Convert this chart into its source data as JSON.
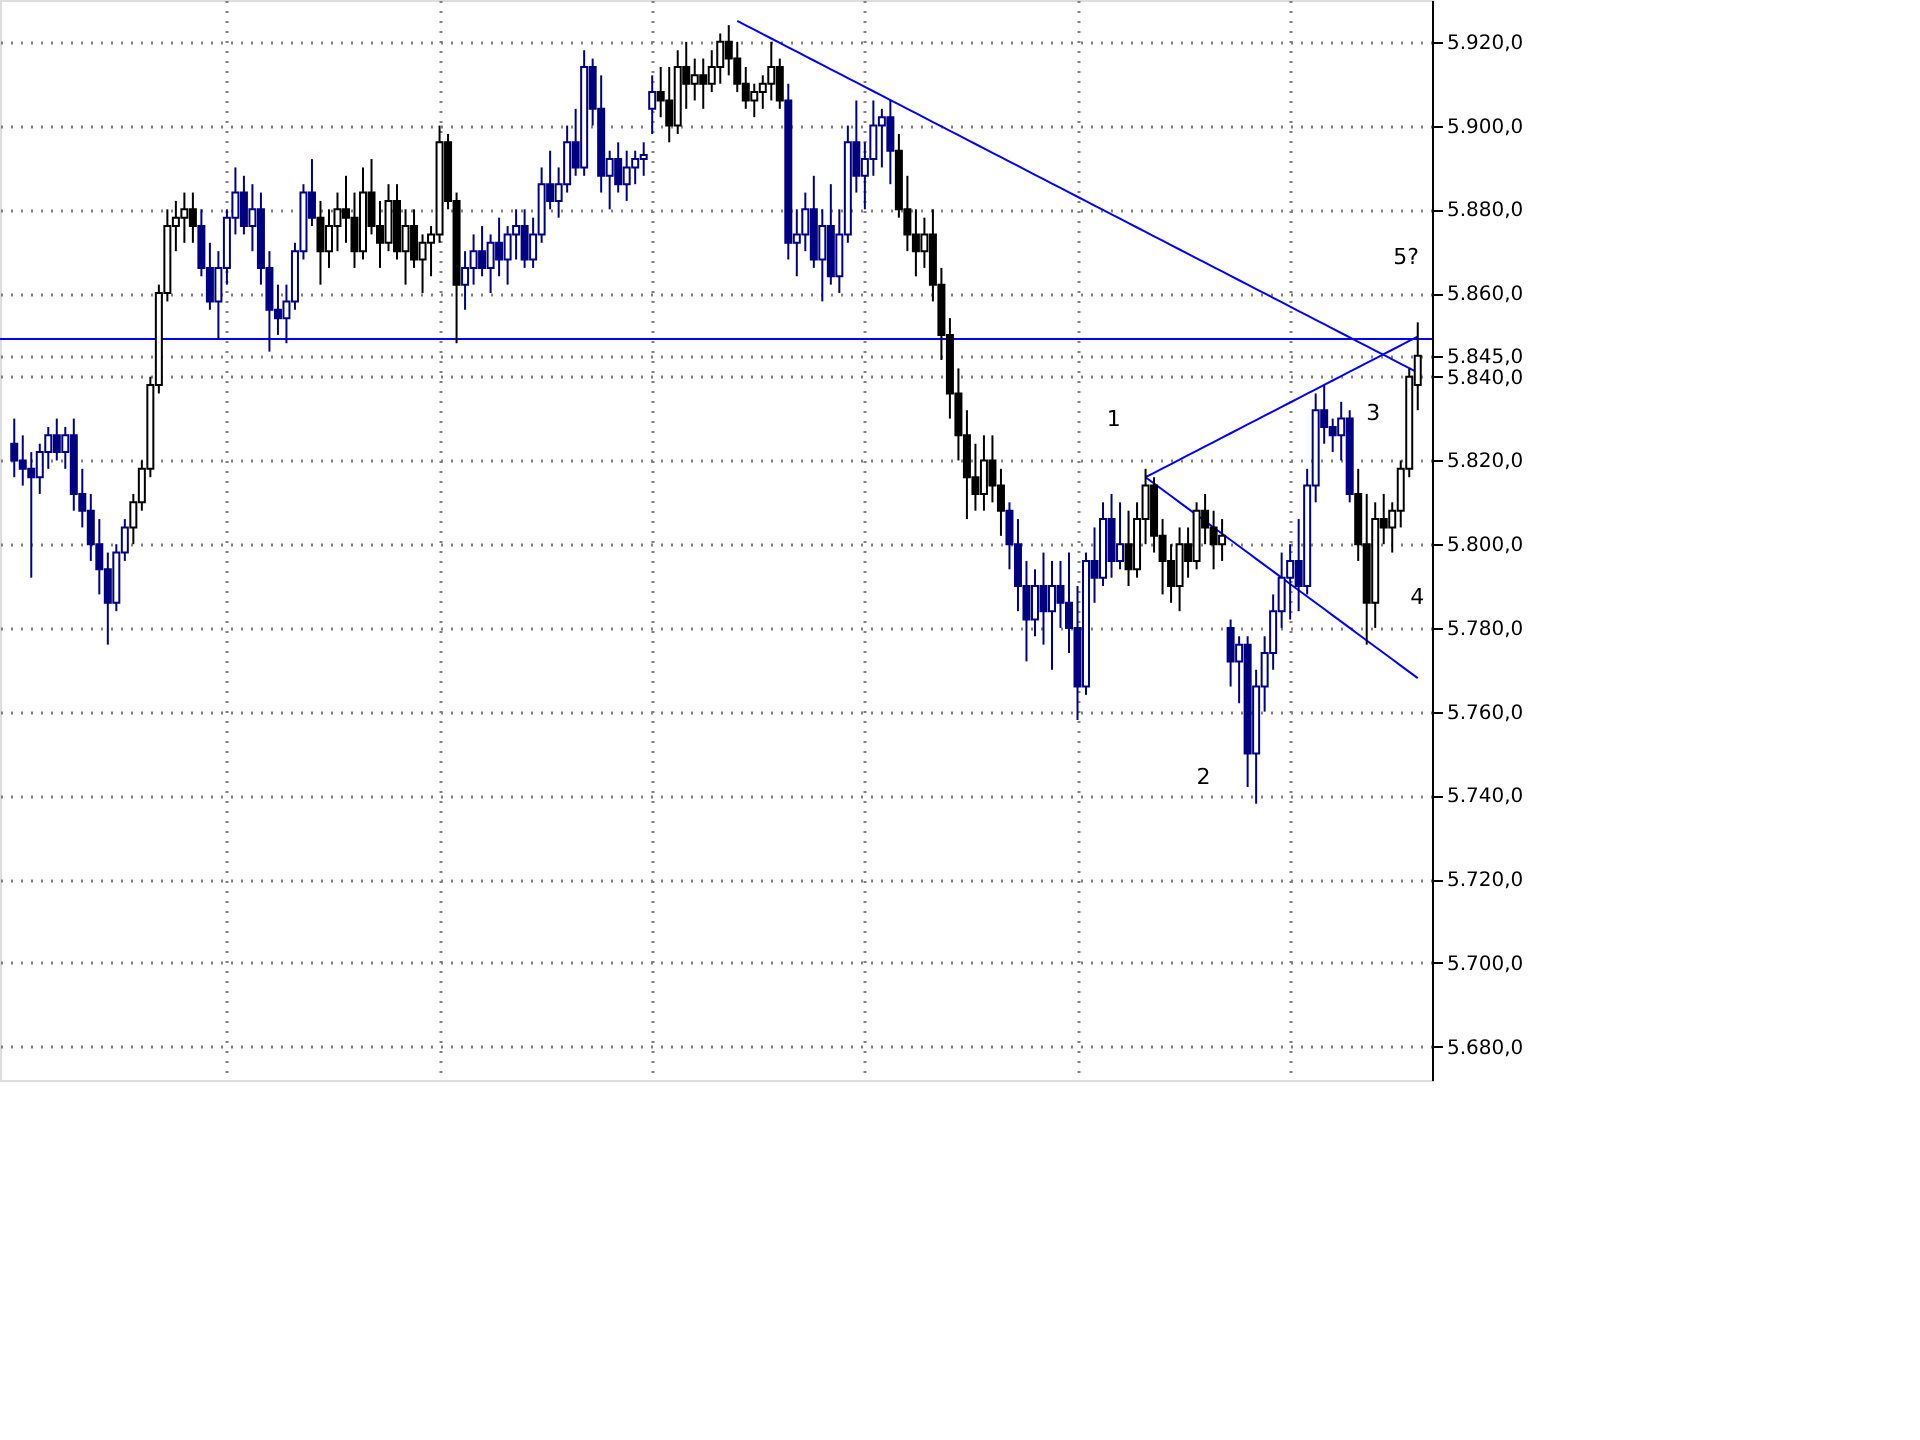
{
  "chart_data": {
    "type": "candlestick",
    "categories": [
      null,
      null,
      null,
      null,
      null,
      null,
      null,
      null,
      null,
      null,
      null,
      null,
      null,
      null,
      null,
      null,
      null,
      null,
      null,
      null,
      null,
      null,
      null,
      null,
      null,
      null,
      null,
      null,
      null,
      null,
      null,
      null,
      null,
      null,
      null,
      null,
      null,
      null,
      null,
      null,
      null,
      null,
      null,
      null,
      null,
      null,
      null,
      null,
      null,
      null,
      null,
      null,
      null,
      null,
      null,
      null,
      null,
      null,
      null,
      null,
      null,
      null,
      null,
      null,
      null,
      null,
      null,
      null,
      null,
      null,
      null,
      null,
      null,
      null,
      null,
      null,
      null,
      null,
      null,
      null,
      null,
      null,
      null,
      null,
      null,
      null,
      null,
      null,
      null,
      null,
      null,
      null,
      null,
      null,
      null,
      null,
      null,
      null,
      null,
      null,
      null,
      null,
      null,
      null,
      null,
      null,
      null,
      null,
      null,
      null,
      null,
      null,
      null,
      null,
      null,
      null,
      null,
      null,
      null,
      null,
      null,
      null,
      null,
      null,
      null,
      null,
      null,
      null,
      null,
      null,
      null,
      null,
      null,
      null,
      null,
      null,
      null,
      null,
      null,
      null,
      null,
      null,
      null,
      null,
      null,
      null,
      null,
      null,
      null,
      null,
      null,
      null,
      null,
      null,
      null,
      null,
      null,
      null,
      null,
      null,
      null,
      null,
      null,
      null,
      null,
      null
    ],
    "ohlc": [
      [
        5824,
        5830,
        5816,
        5820
      ],
      [
        5820,
        5826,
        5814,
        5818
      ],
      [
        5818,
        5822,
        5792,
        5816
      ],
      [
        5816,
        5824,
        5812,
        5822
      ],
      [
        5822,
        5828,
        5818,
        5826
      ],
      [
        5826,
        5830,
        5820,
        5822
      ],
      [
        5822,
        5828,
        5818,
        5826
      ],
      [
        5826,
        5830,
        5808,
        5812
      ],
      [
        5812,
        5818,
        5804,
        5808
      ],
      [
        5808,
        5812,
        5796,
        5800
      ],
      [
        5800,
        5806,
        5788,
        5794
      ],
      [
        5794,
        5798,
        5776,
        5786
      ],
      [
        5786,
        5800,
        5784,
        5798
      ],
      [
        5798,
        5806,
        5796,
        5804
      ],
      [
        5804,
        5812,
        5800,
        5810
      ],
      [
        5810,
        5820,
        5808,
        5818
      ],
      [
        5818,
        5840,
        5816,
        5838
      ],
      [
        5838,
        5862,
        5836,
        5860
      ],
      [
        5860,
        5880,
        5858,
        5876
      ],
      [
        5876,
        5882,
        5870,
        5878
      ],
      [
        5878,
        5884,
        5872,
        5880
      ],
      [
        5880,
        5884,
        5872,
        5876
      ],
      [
        5876,
        5880,
        5864,
        5866
      ],
      [
        5866,
        5872,
        5856,
        5858
      ],
      [
        5858,
        5870,
        5849,
        5866
      ],
      [
        5866,
        5880,
        5862,
        5878
      ],
      [
        5878,
        5890,
        5874,
        5884
      ],
      [
        5884,
        5888,
        5874,
        5876
      ],
      [
        5876,
        5886,
        5870,
        5880
      ],
      [
        5880,
        5884,
        5862,
        5866
      ],
      [
        5866,
        5870,
        5846,
        5856
      ],
      [
        5856,
        5862,
        5850,
        5854
      ],
      [
        5854,
        5862,
        5848,
        5858
      ],
      [
        5858,
        5872,
        5856,
        5870
      ],
      [
        5870,
        5886,
        5868,
        5884
      ],
      [
        5884,
        5892,
        5876,
        5878
      ],
      [
        5878,
        5882,
        5862,
        5870
      ],
      [
        5870,
        5880,
        5866,
        5876
      ],
      [
        5876,
        5884,
        5870,
        5880
      ],
      [
        5880,
        5888,
        5872,
        5878
      ],
      [
        5878,
        5884,
        5866,
        5870
      ],
      [
        5870,
        5890,
        5868,
        5884
      ],
      [
        5884,
        5892,
        5874,
        5876
      ],
      [
        5876,
        5882,
        5866,
        5872
      ],
      [
        5872,
        5886,
        5870,
        5882
      ],
      [
        5882,
        5886,
        5868,
        5870
      ],
      [
        5870,
        5880,
        5862,
        5876
      ],
      [
        5876,
        5880,
        5866,
        5868
      ],
      [
        5868,
        5874,
        5860,
        5872
      ],
      [
        5872,
        5876,
        5864,
        5874
      ],
      [
        5874,
        5900,
        5872,
        5896
      ],
      [
        5896,
        5898,
        5880,
        5882
      ],
      [
        5882,
        5884,
        5848,
        5862
      ],
      [
        5862,
        5870,
        5856,
        5866
      ],
      [
        5866,
        5874,
        5862,
        5870
      ],
      [
        5870,
        5876,
        5864,
        5866
      ],
      [
        5866,
        5874,
        5860,
        5872
      ],
      [
        5872,
        5878,
        5864,
        5868
      ],
      [
        5868,
        5876,
        5862,
        5874
      ],
      [
        5874,
        5880,
        5868,
        5876
      ],
      [
        5876,
        5880,
        5866,
        5868
      ],
      [
        5868,
        5878,
        5866,
        5874
      ],
      [
        5874,
        5890,
        5872,
        5886
      ],
      [
        5886,
        5894,
        5880,
        5882
      ],
      [
        5882,
        5890,
        5878,
        5886
      ],
      [
        5886,
        5900,
        5884,
        5896
      ],
      [
        5896,
        5904,
        5888,
        5890
      ],
      [
        5890,
        5918,
        5888,
        5914
      ],
      [
        5914,
        5916,
        5900,
        5904
      ],
      [
        5904,
        5912,
        5884,
        5888
      ],
      [
        5888,
        5894,
        5880,
        5892
      ],
      [
        5892,
        5896,
        5884,
        5886
      ],
      [
        5886,
        5894,
        5882,
        5890
      ],
      [
        5890,
        5894,
        5886,
        5892
      ],
      [
        5892,
        5896,
        5888,
        5893
      ],
      [
        5904,
        5912,
        5898,
        5908
      ],
      [
        5908,
        5914,
        5902,
        5906
      ],
      [
        5906,
        5914,
        5896,
        5900
      ],
      [
        5900,
        5918,
        5898,
        5914
      ],
      [
        5914,
        5920,
        5904,
        5910
      ],
      [
        5910,
        5916,
        5906,
        5912
      ],
      [
        5912,
        5916,
        5904,
        5910
      ],
      [
        5910,
        5918,
        5908,
        5914
      ],
      [
        5914,
        5922,
        5910,
        5920
      ],
      [
        5920,
        5924,
        5912,
        5916
      ],
      [
        5916,
        5920,
        5908,
        5910
      ],
      [
        5910,
        5914,
        5904,
        5906
      ],
      [
        5906,
        5910,
        5902,
        5908
      ],
      [
        5908,
        5912,
        5904,
        5910
      ],
      [
        5910,
        5920,
        5906,
        5914
      ],
      [
        5914,
        5916,
        5904,
        5906
      ],
      [
        5906,
        5910,
        5868,
        5872
      ],
      [
        5872,
        5880,
        5864,
        5874
      ],
      [
        5874,
        5884,
        5870,
        5880
      ],
      [
        5880,
        5888,
        5866,
        5868
      ],
      [
        5868,
        5880,
        5858,
        5876
      ],
      [
        5876,
        5886,
        5862,
        5864
      ],
      [
        5864,
        5880,
        5860,
        5874
      ],
      [
        5874,
        5900,
        5872,
        5896
      ],
      [
        5896,
        5906,
        5884,
        5888
      ],
      [
        5888,
        5896,
        5880,
        5892
      ],
      [
        5892,
        5906,
        5888,
        5900
      ],
      [
        5900,
        5904,
        5890,
        5902
      ],
      [
        5902,
        5906,
        5886,
        5894
      ],
      [
        5894,
        5898,
        5878,
        5880
      ],
      [
        5880,
        5888,
        5870,
        5874
      ],
      [
        5874,
        5880,
        5864,
        5870
      ],
      [
        5870,
        5878,
        5866,
        5874
      ],
      [
        5874,
        5880,
        5858,
        5862
      ],
      [
        5862,
        5866,
        5844,
        5850
      ],
      [
        5850,
        5854,
        5830,
        5836
      ],
      [
        5836,
        5842,
        5820,
        5826
      ],
      [
        5826,
        5832,
        5806,
        5816
      ],
      [
        5816,
        5824,
        5808,
        5812
      ],
      [
        5812,
        5826,
        5808,
        5820
      ],
      [
        5820,
        5826,
        5810,
        5814
      ],
      [
        5814,
        5818,
        5802,
        5808
      ],
      [
        5808,
        5810,
        5794,
        5800
      ],
      [
        5800,
        5806,
        5784,
        5790
      ],
      [
        5790,
        5796,
        5772,
        5782
      ],
      [
        5782,
        5794,
        5778,
        5790
      ],
      [
        5790,
        5798,
        5776,
        5784
      ],
      [
        5784,
        5796,
        5770,
        5790
      ],
      [
        5790,
        5796,
        5780,
        5786
      ],
      [
        5786,
        5798,
        5774,
        5780
      ],
      [
        5780,
        5790,
        5758,
        5766
      ],
      [
        5766,
        5798,
        5764,
        5796
      ],
      [
        5796,
        5804,
        5786,
        5792
      ],
      [
        5792,
        5810,
        5790,
        5806
      ],
      [
        5806,
        5812,
        5792,
        5796
      ],
      [
        5796,
        5810,
        5794,
        5800
      ],
      [
        5800,
        5808,
        5790,
        5794
      ],
      [
        5794,
        5810,
        5792,
        5806
      ],
      [
        5806,
        5818,
        5800,
        5814
      ],
      [
        5814,
        5816,
        5798,
        5802
      ],
      [
        5802,
        5806,
        5788,
        5796
      ],
      [
        5796,
        5800,
        5786,
        5790
      ],
      [
        5790,
        5804,
        5784,
        5800
      ],
      [
        5800,
        5804,
        5792,
        5796
      ],
      [
        5796,
        5810,
        5794,
        5808
      ],
      [
        5808,
        5812,
        5800,
        5804
      ],
      [
        5804,
        5808,
        5794,
        5800
      ],
      [
        5800,
        5806,
        5796,
        5802
      ],
      [
        5780,
        5782,
        5766,
        5772
      ],
      [
        5772,
        5778,
        5762,
        5776
      ],
      [
        5776,
        5778,
        5742,
        5750
      ],
      [
        5750,
        5770,
        5738,
        5766
      ],
      [
        5766,
        5778,
        5760,
        5774
      ],
      [
        5774,
        5788,
        5770,
        5784
      ],
      [
        5784,
        5798,
        5780,
        5792
      ],
      [
        5792,
        5800,
        5782,
        5796
      ],
      [
        5796,
        5806,
        5784,
        5790
      ],
      [
        5790,
        5818,
        5788,
        5814
      ],
      [
        5814,
        5836,
        5810,
        5832
      ],
      [
        5832,
        5838,
        5824,
        5828
      ],
      [
        5828,
        5830,
        5822,
        5826
      ],
      [
        5826,
        5834,
        5820,
        5830
      ],
      [
        5830,
        5832,
        5810,
        5812
      ],
      [
        5812,
        5818,
        5796,
        5800
      ],
      [
        5800,
        5812,
        5776,
        5786
      ],
      [
        5786,
        5810,
        5780,
        5806
      ],
      [
        5806,
        5812,
        5800,
        5804
      ],
      [
        5804,
        5810,
        5798,
        5808
      ],
      [
        5808,
        5820,
        5804,
        5818
      ],
      [
        5818,
        5842,
        5816,
        5840
      ],
      [
        5838,
        5853,
        5832,
        5845
      ]
    ],
    "colors": [
      "#000080",
      "#000080",
      "#000080",
      "#000080",
      "#000080",
      "#000080",
      "#000080",
      "#000080",
      "#000080",
      "#000080",
      "#000080",
      "#000080",
      "#000080",
      "#000080",
      "#000000",
      "#000000",
      "#000000",
      "#000000",
      "#000000",
      "#000000",
      "#000000",
      "#000000",
      "#000080",
      "#000080",
      "#000080",
      "#000080",
      "#000080",
      "#000080",
      "#000080",
      "#000080",
      "#000080",
      "#000080",
      "#000080",
      "#000080",
      "#000080",
      "#000080",
      "#000000",
      "#000000",
      "#000000",
      "#000000",
      "#000000",
      "#000000",
      "#000000",
      "#000000",
      "#000000",
      "#000000",
      "#000000",
      "#000000",
      "#000000",
      "#000000",
      "#000000",
      "#000000",
      "#000000",
      "#000080",
      "#000080",
      "#000080",
      "#000080",
      "#000080",
      "#000080",
      "#000080",
      "#000080",
      "#000080",
      "#000080",
      "#000080",
      "#000080",
      "#000080",
      "#000080",
      "#000080",
      "#000080",
      "#000080",
      "#000080",
      "#000080",
      "#000080",
      "#000080",
      "#000080",
      "#000080",
      "#000000",
      "#000000",
      "#000000",
      "#000000",
      "#000000",
      "#000000",
      "#000000",
      "#000000",
      "#000000",
      "#000000",
      "#000000",
      "#000000",
      "#000000",
      "#000000",
      "#000000",
      "#000080",
      "#000080",
      "#000080",
      "#000080",
      "#000080",
      "#000080",
      "#000080",
      "#000080",
      "#000080",
      "#000080",
      "#000080",
      "#000080",
      "#000080",
      "#000000",
      "#000000",
      "#000000",
      "#000000",
      "#000000",
      "#000000",
      "#000000",
      "#000000",
      "#000000",
      "#000000",
      "#000000",
      "#000000",
      "#000000",
      "#000080",
      "#000080",
      "#000080",
      "#000080",
      "#000080",
      "#000080",
      "#000080",
      "#000080",
      "#000080",
      "#000080",
      "#000080",
      "#000080",
      "#000080",
      "#000080",
      "#000000",
      "#000000",
      "#000000",
      "#000000",
      "#000000",
      "#000000",
      "#000000",
      "#000000",
      "#000000",
      "#000000",
      "#000000",
      "#000000",
      "#000080",
      "#000080",
      "#000080",
      "#000080",
      "#000080",
      "#000080",
      "#000080",
      "#000080",
      "#000080",
      "#000080",
      "#000080",
      "#000080",
      "#000080",
      "#000080",
      "#000080",
      "#000000",
      "#000000",
      "#000000",
      "#000000",
      "#000000",
      "#000000",
      "#000000",
      "#000000"
    ],
    "series": [
      {
        "type": "line",
        "color": "#0000ff",
        "values": [
          null,
          null,
          null,
          null,
          null,
          null,
          null,
          null,
          null,
          null,
          null,
          null,
          null,
          null,
          null,
          null,
          null,
          null,
          null,
          null,
          null,
          null,
          null,
          null,
          null,
          null,
          null,
          null,
          null,
          null,
          null,
          null,
          null,
          null,
          null,
          null,
          null,
          null,
          null,
          null,
          null,
          null,
          null,
          null,
          null,
          null,
          null,
          null,
          null,
          null,
          null,
          null,
          null,
          null,
          null,
          null,
          null,
          null,
          null,
          null,
          null,
          null,
          null,
          null,
          null,
          null,
          null,
          null,
          null,
          null,
          null,
          null,
          null,
          null,
          null,
          null,
          null,
          null,
          null,
          null,
          null,
          null,
          null,
          null,
          null,
          5925,
          5923.95,
          5922.9,
          5921.85,
          5920.8,
          5919.75,
          5918.7,
          5917.65,
          5916.6,
          5915.55,
          5914.5,
          5913.45,
          5912.4,
          5911.35,
          5910.3,
          5909.25,
          5908.2,
          5907.15,
          5906.1,
          5905.05,
          5904,
          5902.95,
          5901.9,
          5900.85,
          5899.8,
          5898.75,
          5897.7,
          5896.65,
          5895.6,
          5894.55,
          5893.5,
          5892.45,
          5891.4,
          5890.35,
          5889.3,
          5888.25,
          5887.2,
          5886.15,
          5885.1,
          5884.05,
          5883,
          5881.95,
          5880.9,
          5879.85,
          5878.8,
          5877.75,
          5876.7,
          5875.65,
          5874.6,
          5873.55,
          5872.5,
          5871.45,
          5870.4,
          5869.35,
          5868.3,
          5867.25,
          5866.2,
          5865.15,
          5864.1,
          5863.05,
          5862,
          5860.95,
          5859.9,
          5858.85,
          5857.8,
          5856.75,
          5855.7,
          5854.65,
          5853.6,
          5852.55,
          5851.5,
          5850.45,
          5849.4,
          5848.35,
          5847.3,
          5846.25,
          5845.2,
          5844.15,
          5843.1,
          5842.05,
          5841
        ]
      },
      {
        "type": "line",
        "color": "#0000ff",
        "values": [
          null,
          null,
          null,
          null,
          null,
          null,
          null,
          null,
          null,
          null,
          null,
          null,
          null,
          null,
          null,
          null,
          null,
          null,
          null,
          null,
          null,
          null,
          null,
          null,
          null,
          null,
          null,
          null,
          null,
          null,
          null,
          null,
          null,
          null,
          null,
          null,
          null,
          null,
          null,
          null,
          null,
          null,
          null,
          null,
          null,
          null,
          null,
          null,
          null,
          null,
          null,
          null,
          null,
          null,
          null,
          null,
          null,
          null,
          null,
          null,
          null,
          null,
          null,
          null,
          null,
          null,
          null,
          null,
          null,
          null,
          null,
          null,
          null,
          null,
          null,
          null,
          null,
          null,
          null,
          null,
          null,
          null,
          null,
          null,
          null,
          null,
          null,
          null,
          null,
          null,
          null,
          null,
          null,
          null,
          null,
          null,
          null,
          null,
          null,
          null,
          null,
          null,
          null,
          null,
          null,
          null,
          null,
          null,
          null,
          null,
          null,
          null,
          null,
          null,
          null,
          null,
          null,
          null,
          null,
          null,
          null,
          null,
          null,
          null,
          null,
          null,
          null,
          null,
          null,
          null,
          null,
          null,
          null,
          5816,
          5817.05,
          5818.1,
          5819.15,
          5820.2,
          5821.25,
          5822.3,
          5823.35,
          5824.4,
          5825.45,
          5826.5,
          5827.55,
          5828.6,
          5829.65,
          5830.7,
          5831.75,
          5832.8,
          5833.85,
          5834.9,
          5835.95,
          5837,
          5838.05,
          5839.1,
          5840.15,
          5841.2,
          5842.25,
          5843.3,
          5844.35,
          5845.4,
          5846.45,
          5847.5,
          5848.55,
          5849.6
        ]
      },
      {
        "type": "line",
        "color": "#0000ff",
        "values": [
          null,
          null,
          null,
          null,
          null,
          null,
          null,
          null,
          null,
          null,
          null,
          null,
          null,
          null,
          null,
          null,
          null,
          null,
          null,
          null,
          null,
          null,
          null,
          null,
          null,
          null,
          null,
          null,
          null,
          null,
          null,
          null,
          null,
          null,
          null,
          null,
          null,
          null,
          null,
          null,
          null,
          null,
          null,
          null,
          null,
          null,
          null,
          null,
          null,
          null,
          null,
          null,
          null,
          null,
          null,
          null,
          null,
          null,
          null,
          null,
          null,
          null,
          null,
          null,
          null,
          null,
          null,
          null,
          null,
          null,
          null,
          null,
          null,
          null,
          null,
          null,
          null,
          null,
          null,
          null,
          null,
          null,
          null,
          null,
          null,
          null,
          null,
          null,
          null,
          null,
          null,
          null,
          null,
          null,
          null,
          null,
          null,
          null,
          null,
          null,
          null,
          null,
          null,
          null,
          null,
          null,
          null,
          null,
          null,
          null,
          null,
          null,
          null,
          null,
          null,
          null,
          null,
          null,
          null,
          null,
          null,
          null,
          null,
          null,
          null,
          null,
          null,
          null,
          null,
          null,
          null,
          null,
          null,
          5816,
          5814.5,
          5813,
          5811.5,
          5810,
          5808.5,
          5807,
          5805.5,
          5804,
          5802.5,
          5801,
          5799.5,
          5798,
          5796.5,
          5795,
          5793.5,
          5792,
          5790.5,
          5789,
          5787.5,
          5786,
          5784.5,
          5783,
          5781.5,
          5780,
          5778.5,
          5777,
          5775.5,
          5774,
          5772.5,
          5771,
          5769.5,
          5768
        ]
      }
    ],
    "ref_lines": [
      {
        "axis": "y",
        "value": 5849,
        "color": "#0000ff"
      }
    ],
    "ylim": [
      5672,
      5930
    ],
    "yticks": [
      {
        "value": 5680,
        "label": "5.680,0"
      },
      {
        "value": 5700,
        "label": "5.700,0"
      },
      {
        "value": 5720,
        "label": "5.720,0"
      },
      {
        "value": 5740,
        "label": "5.740,0"
      },
      {
        "value": 5760,
        "label": "5.760,0"
      },
      {
        "value": 5780,
        "label": "5.780,0"
      },
      {
        "value": 5800,
        "label": "5.800,0"
      },
      {
        "value": 5820,
        "label": "5.820,0"
      },
      {
        "value": 5840,
        "label": "5.840,0"
      },
      {
        "value": 5845,
        "label": "5.845,0"
      },
      {
        "value": 5860,
        "label": "5.860,0"
      },
      {
        "value": 5880,
        "label": "5.880,0"
      },
      {
        "value": 5900,
        "label": "5.900,0"
      },
      {
        "value": 5920,
        "label": "5.920,0"
      }
    ],
    "tick_labels": "y",
    "grid": true,
    "annotations": [
      "1",
      "2",
      "3",
      "4",
      "5?"
    ]
  }
}
